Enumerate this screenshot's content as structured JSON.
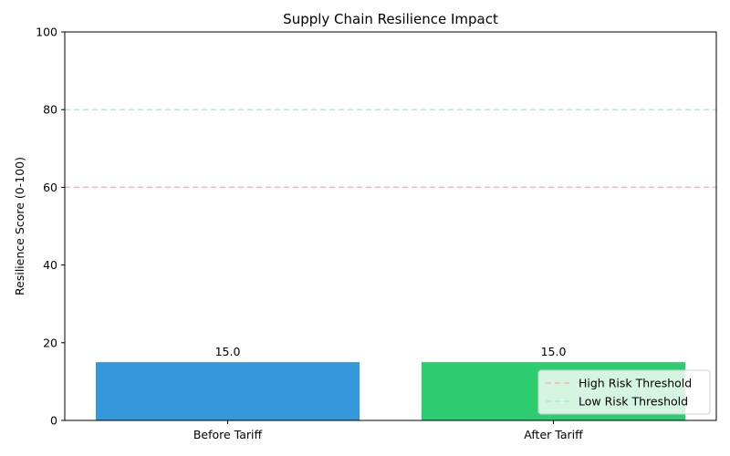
{
  "chart_data": {
    "type": "bar",
    "title": "Supply Chain Resilience Impact",
    "xlabel": "",
    "ylabel": "Resilience Score (0-100)",
    "ylim": [
      0,
      100
    ],
    "yticks": [
      0,
      20,
      40,
      60,
      80,
      100
    ],
    "categories": [
      "Before Tariff",
      "After Tariff"
    ],
    "values": [
      15.0,
      15.0
    ],
    "data_labels": [
      "15.0",
      "15.0"
    ],
    "bar_colors": [
      "#3498db",
      "#2ecc71"
    ],
    "grid": false,
    "thresholds": [
      {
        "name": "High Risk Threshold",
        "value": 60,
        "color": "#f2b8ad",
        "style": "dashed"
      },
      {
        "name": "Low Risk Threshold",
        "value": 80,
        "color": "#b5ead0",
        "style": "dashed"
      }
    ],
    "legend": {
      "placement": "lower-right",
      "entries": [
        "High Risk Threshold",
        "Low Risk Threshold"
      ]
    }
  }
}
